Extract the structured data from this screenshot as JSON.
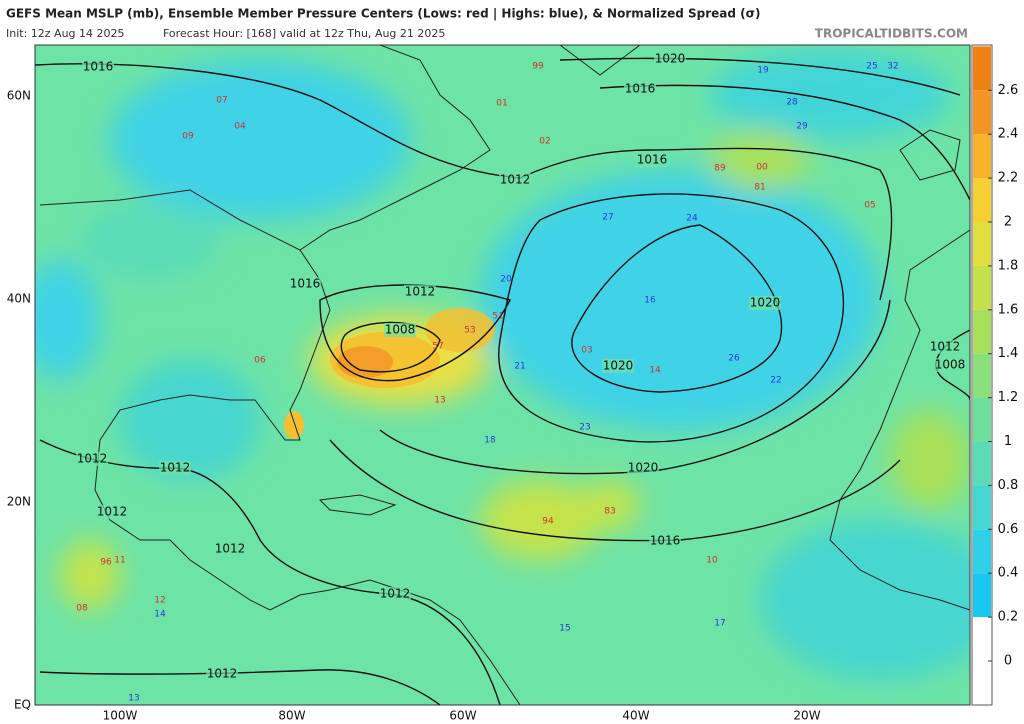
{
  "header": {
    "title": "GEFS Mean MSLP (mb), Ensemble Member Pressure Centers (Lows: red | Highs: blue), & Normalized Spread (σ)",
    "init": "Init: 12z Aug 14 2025",
    "forecast": "Forecast Hour: [168]   valid at 12z Thu, Aug 21 2025",
    "watermark": "TROPICALTIDBITS.COM"
  },
  "latitude_labels": [
    "60N",
    "40N",
    "20N",
    "EQ"
  ],
  "longitude_labels": [
    "100W",
    "80W",
    "60W",
    "40W",
    "20W"
  ],
  "isobar_labels": [
    "1016",
    "1020",
    "1016",
    "1016",
    "1012",
    "1012",
    "1008",
    "1016",
    "1020",
    "1020",
    "1020",
    "1016",
    "1012",
    "1012",
    "1012",
    "1012",
    "1012",
    "1012",
    "1012",
    "1008"
  ],
  "lows": [
    "99",
    "01",
    "02",
    "53",
    "51",
    "57",
    "94",
    "83",
    "96",
    "07",
    "09",
    "11",
    "08",
    "05",
    "10",
    "12",
    "13",
    "03",
    "04",
    "06",
    "14",
    "00",
    "89",
    "81"
  ],
  "highs": [
    "25",
    "32",
    "28",
    "29",
    "24",
    "19",
    "16",
    "22",
    "23",
    "21",
    "18",
    "20",
    "15",
    "17",
    "27",
    "26",
    "13",
    "14"
  ],
  "colorbar": {
    "ticks": [
      0,
      0.2,
      0.4,
      0.6,
      0.8,
      1,
      1.2,
      1.4,
      1.6,
      1.8,
      2,
      2.2,
      2.4,
      2.6
    ],
    "colors": [
      "#ffffff",
      "#19c8f0",
      "#2fd0e8",
      "#45d6d2",
      "#5cdcb6",
      "#6fe09c",
      "#8ae07a",
      "#a8e05c",
      "#c6e04c",
      "#e2de40",
      "#f6d032",
      "#f6b228",
      "#f49422",
      "#ee8014"
    ]
  }
}
